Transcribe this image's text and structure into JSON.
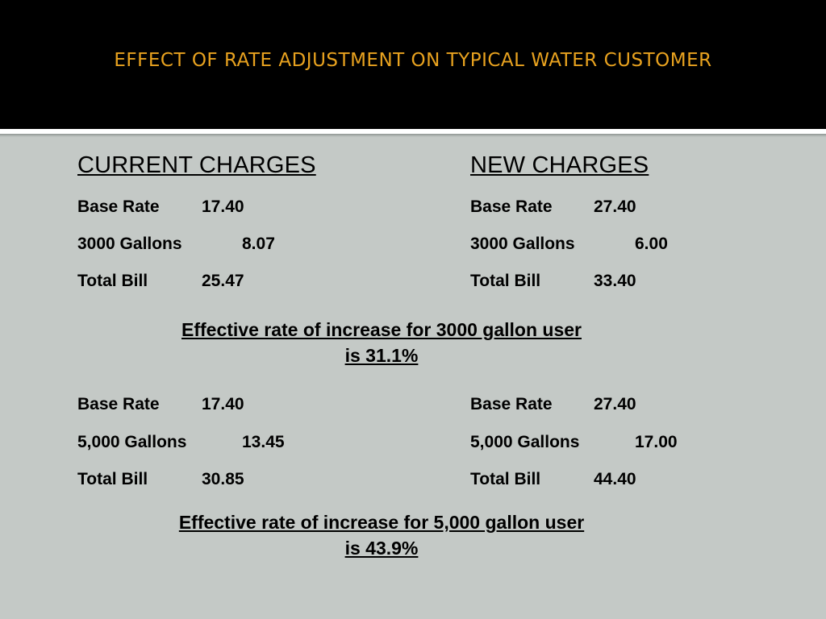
{
  "slide": {
    "title": "EFFECT OF RATE ADJUSTMENT ON TYPICAL WATER CUSTOMER",
    "current_heading": "CURRENT CHARGES",
    "new_heading": "NEW CHARGES",
    "group_3000": {
      "current": [
        {
          "label": "Base Rate",
          "value": "17.40"
        },
        {
          "label": "3000 Gallons",
          "value": "8.07"
        },
        {
          "label": "Total Bill",
          "value": "25.47"
        }
      ],
      "new": [
        {
          "label": "Base Rate",
          "value": "27.40"
        },
        {
          "label": "3000 Gallons",
          "value": "6.00"
        },
        {
          "label": "Total Bill",
          "value": "33.40"
        }
      ],
      "summary_line1": "Effective rate of increase for 3000 gallon user",
      "summary_line2": "is 31.1%"
    },
    "group_5000": {
      "current": [
        {
          "label": "Base Rate",
          "value": "17.40"
        },
        {
          "label": "5,000 Gallons",
          "value": "13.45"
        },
        {
          "label": "Total Bill",
          "value": "30.85"
        }
      ],
      "new": [
        {
          "label": "Base Rate",
          "value": "27.40"
        },
        {
          "label": "5,000 Gallons",
          "value": "17.00"
        },
        {
          "label": "Total Bill",
          "value": "44.40"
        }
      ],
      "summary_line1": "Effective rate of increase for 5,000 gallon user",
      "summary_line2": "is 43.9%"
    }
  }
}
